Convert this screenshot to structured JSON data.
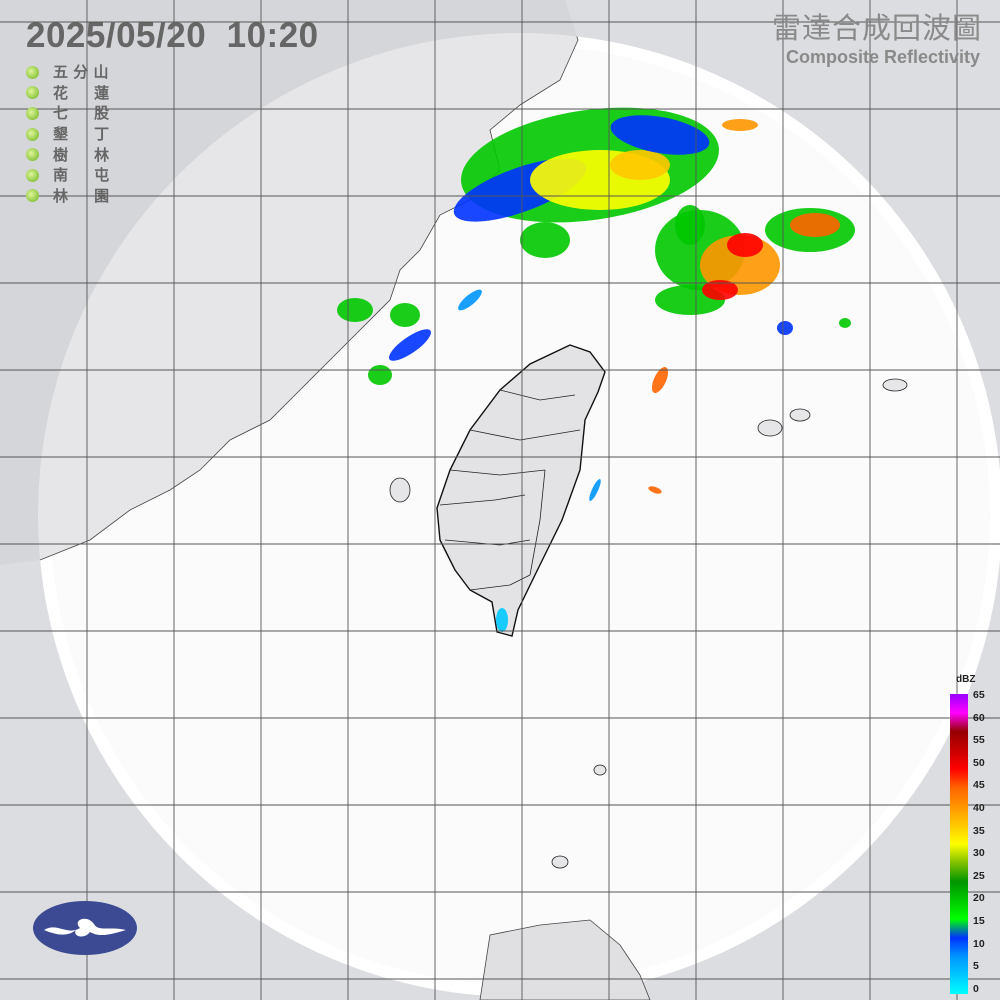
{
  "header": {
    "timestamp": "2025/05/20  10:20",
    "title_zh": "雷達合成回波圖",
    "title_en": "Composite Reflectivity"
  },
  "stations": [
    {
      "name": "五 分 山",
      "status_color": "#8cc63f"
    },
    {
      "name": "花     蓮",
      "status_color": "#8cc63f"
    },
    {
      "name": "七     股",
      "status_color": "#8cc63f"
    },
    {
      "name": "墾     丁",
      "status_color": "#8cc63f"
    },
    {
      "name": "樹     林",
      "status_color": "#8cc63f"
    },
    {
      "name": "南     屯",
      "status_color": "#8cc63f"
    },
    {
      "name": "林     園",
      "status_color": "#8cc63f"
    }
  ],
  "legend": {
    "unit": "dBZ",
    "ticks": [
      "65",
      "60",
      "55",
      "50",
      "45",
      "40",
      "35",
      "30",
      "25",
      "20",
      "15",
      "10",
      "5",
      "0"
    ],
    "colors": [
      "#00ffff",
      "#00c8ff",
      "#0096ff",
      "#0032ff",
      "#00ff00",
      "#00c800",
      "#009600",
      "#80c000",
      "#ffff00",
      "#ffc800",
      "#ff9600",
      "#ff6400",
      "#ff0000",
      "#c80000",
      "#960000",
      "#ff00ff",
      "#9900ff"
    ]
  },
  "map": {
    "background_outside_coverage": "#dcdde1",
    "coverage_color": "#ffffff",
    "land_color": "#e4e4e6",
    "grid_color": "#555555"
  },
  "logo": {
    "name": "cwa-logo-icon",
    "color": "#3b4a92"
  }
}
